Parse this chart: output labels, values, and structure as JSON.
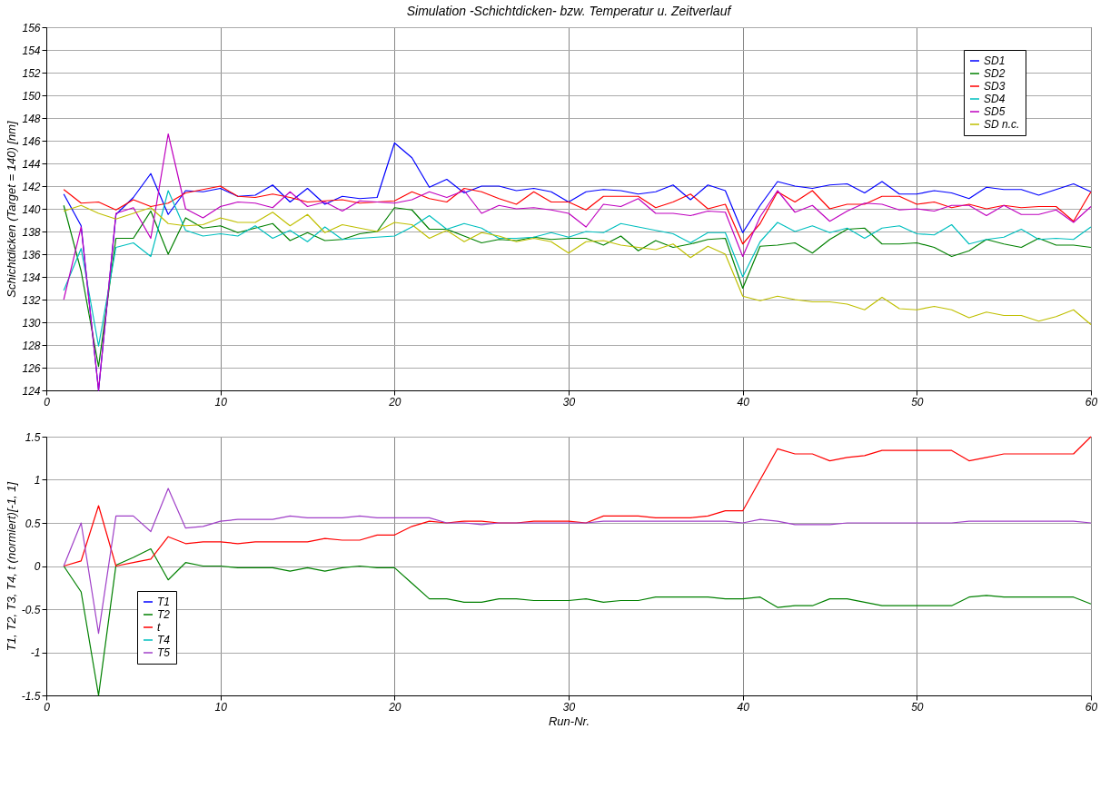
{
  "chart_data": [
    {
      "type": "line",
      "title": "Simulation -Schichtdicken- bzw. Temperatur u. Zeitverlauf",
      "ylabel": "Schichtdicken (Target = 140) [nm]",
      "x": [
        1,
        2,
        3,
        4,
        5,
        6,
        7,
        8,
        9,
        10,
        11,
        12,
        13,
        14,
        15,
        16,
        17,
        18,
        19,
        20,
        21,
        22,
        23,
        24,
        25,
        26,
        27,
        28,
        29,
        30,
        31,
        32,
        33,
        34,
        35,
        36,
        37,
        38,
        39,
        40,
        41,
        42,
        43,
        44,
        45,
        46,
        47,
        48,
        49,
        50,
        51,
        52,
        53,
        54,
        55,
        56,
        57,
        58,
        59,
        60
      ],
      "xlim": [
        0,
        60
      ],
      "xticks": [
        0,
        10,
        20,
        30,
        40,
        50,
        60
      ],
      "ylim": [
        124,
        156
      ],
      "yticks": [
        124,
        126,
        128,
        130,
        132,
        134,
        136,
        138,
        140,
        142,
        144,
        146,
        148,
        150,
        152,
        154,
        156
      ],
      "grid": true,
      "legend": "top right",
      "series": [
        {
          "name": "SD1",
          "color": "#0000ff",
          "values": [
            141.3,
            138.5,
            124,
            139.5,
            141,
            143.1,
            139.5,
            141.6,
            141.5,
            141.8,
            141.1,
            141.2,
            142.1,
            140.6,
            141.8,
            140.4,
            141.1,
            140.9,
            141,
            145.8,
            144.5,
            141.9,
            142.6,
            141.4,
            142,
            142,
            141.6,
            141.8,
            141.5,
            140.6,
            141.5,
            141.7,
            141.6,
            141.3,
            141.5,
            142.1,
            140.8,
            142.1,
            141.6,
            137.9,
            140.3,
            142.4,
            142,
            141.8,
            142.1,
            142.2,
            141.4,
            142.4,
            141.3,
            141.3,
            141.6,
            141.4,
            140.9,
            141.9,
            141.7,
            141.7,
            141.2,
            141.7,
            142.2,
            141.5
          ]
        },
        {
          "name": "SD2",
          "color": "#008000",
          "values": [
            140.3,
            134.5,
            126.1,
            137.4,
            137.4,
            139.8,
            136,
            139.2,
            138.3,
            138.5,
            137.9,
            138.3,
            138.7,
            137.2,
            137.9,
            137.2,
            137.3,
            137.8,
            138,
            140.1,
            139.9,
            138.2,
            138.2,
            137.6,
            137,
            137.3,
            137.2,
            137.5,
            137.3,
            137.4,
            137.4,
            136.8,
            137.6,
            136.3,
            137.2,
            136.6,
            136.9,
            137.3,
            137.4,
            133,
            136.7,
            136.8,
            137,
            136.1,
            137.3,
            138.2,
            138.3,
            136.9,
            136.9,
            137,
            136.6,
            135.8,
            136.3,
            137.3,
            136.9,
            136.6,
            137.4,
            136.8,
            136.8,
            136.6
          ]
        },
        {
          "name": "SD3",
          "color": "#ff0000",
          "values": [
            141.7,
            140.5,
            140.6,
            139.9,
            140.8,
            140.2,
            140.5,
            141.4,
            141.7,
            142,
            141.1,
            141,
            141.3,
            141,
            140.6,
            140.7,
            140.8,
            140.5,
            140.6,
            140.7,
            141.5,
            140.9,
            140.6,
            141.8,
            141.5,
            140.9,
            140.4,
            141.5,
            140.6,
            140.6,
            139.9,
            141.1,
            141.1,
            141.1,
            140.1,
            140.6,
            141.3,
            140,
            140.4,
            136.9,
            138.7,
            141.5,
            140.6,
            141.6,
            140,
            140.4,
            140.4,
            141.1,
            141.1,
            140.4,
            140.6,
            140.1,
            140.4,
            140,
            140.3,
            140.1,
            140.2,
            140.2,
            138.9,
            141.5
          ]
        },
        {
          "name": "SD4",
          "color": "#00bfbf",
          "values": [
            132.8,
            136.5,
            127.9,
            136.6,
            137,
            135.8,
            141.6,
            138.1,
            137.6,
            137.8,
            137.6,
            138.5,
            137.4,
            138.1,
            137.1,
            138.4,
            137.3,
            137.4,
            137.5,
            137.6,
            138.4,
            139.4,
            138.2,
            138.7,
            138.3,
            137.4,
            137.4,
            137.5,
            137.9,
            137.5,
            138,
            137.9,
            138.7,
            138.4,
            138.1,
            137.8,
            137,
            137.9,
            137.9,
            134,
            137.1,
            138.8,
            138,
            138.5,
            137.9,
            138.3,
            137.4,
            138.3,
            138.5,
            137.8,
            137.7,
            138.6,
            136.9,
            137.3,
            137.5,
            138.2,
            137.3,
            137.4,
            137.3,
            138.4
          ]
        },
        {
          "name": "SD5",
          "color": "#bf00bf",
          "values": [
            132,
            138.4,
            124,
            139.6,
            140.1,
            137.4,
            146.6,
            140,
            139.2,
            140.2,
            140.6,
            140.5,
            140.1,
            141.5,
            140.2,
            140.6,
            139.8,
            140.7,
            140.6,
            140.5,
            140.8,
            141.5,
            141,
            141.6,
            139.6,
            140.3,
            140,
            140.1,
            139.9,
            139.6,
            138.4,
            140.4,
            140.2,
            140.9,
            139.6,
            139.6,
            139.4,
            139.8,
            139.7,
            135.8,
            139.3,
            141.6,
            139.7,
            140.3,
            138.9,
            139.8,
            140.5,
            140.4,
            139.9,
            140,
            139.8,
            140.3,
            140.3,
            139.4,
            140.3,
            139.5,
            139.5,
            139.9,
            138.8,
            140.2
          ]
        },
        {
          "name": "SD n.c.",
          "color": "#bfbf00",
          "values": [
            139.8,
            140.3,
            139.6,
            139.1,
            139.6,
            140.1,
            138.7,
            138.5,
            138.6,
            139.2,
            138.8,
            138.8,
            139.7,
            138.5,
            139.5,
            137.9,
            138.6,
            138.3,
            138,
            138.8,
            138.6,
            137.4,
            138.1,
            137.1,
            137.9,
            137.6,
            137.1,
            137.4,
            137.1,
            136.1,
            137.1,
            137.2,
            136.8,
            136.6,
            136.4,
            136.9,
            135.7,
            136.7,
            136,
            132.3,
            131.9,
            132.3,
            132,
            131.8,
            131.8,
            131.6,
            131.1,
            132.2,
            131.2,
            131.1,
            131.4,
            131.1,
            130.4,
            130.9,
            130.6,
            130.6,
            130.1,
            130.5,
            131.1,
            129.8
          ]
        }
      ]
    },
    {
      "type": "line",
      "xlabel": "Run-Nr.",
      "ylabel": "T1, T2, T3, T4, t (normiert)[-1, 1]",
      "x": [
        1,
        2,
        3,
        4,
        5,
        6,
        7,
        8,
        9,
        10,
        11,
        12,
        13,
        14,
        15,
        16,
        17,
        18,
        19,
        20,
        21,
        22,
        23,
        24,
        25,
        26,
        27,
        28,
        29,
        30,
        31,
        32,
        33,
        34,
        35,
        36,
        37,
        38,
        39,
        40,
        41,
        42,
        43,
        44,
        45,
        46,
        47,
        48,
        49,
        50,
        51,
        52,
        53,
        54,
        55,
        56,
        57,
        58,
        59,
        60
      ],
      "xlim": [
        0,
        60
      ],
      "xticks": [
        0,
        10,
        20,
        30,
        40,
        50,
        60
      ],
      "ylim": [
        -1.5,
        1.5
      ],
      "yticks": [
        -1.5,
        -1,
        -0.5,
        0,
        0.5,
        1,
        1.5
      ],
      "grid": true,
      "legend": "bottom left",
      "series": [
        {
          "name": "T1",
          "color": "#0000ff",
          "values": [
            null,
            null,
            null,
            null,
            null,
            null,
            null,
            null,
            null,
            null,
            null,
            null,
            null,
            null,
            null,
            null,
            null,
            null,
            null,
            null,
            null,
            null,
            null,
            null,
            null,
            null,
            null,
            null,
            null,
            null,
            null,
            null,
            null,
            null,
            null,
            null,
            null,
            null,
            null,
            null,
            null,
            null,
            null,
            null,
            null,
            null,
            null,
            null,
            null,
            null,
            null,
            null,
            null,
            null,
            null,
            null,
            null,
            null,
            null,
            null
          ]
        },
        {
          "name": "T2",
          "color": "#008000",
          "values": [
            0,
            -0.3,
            -1.5,
            0.01,
            0.1,
            0.2,
            -0.16,
            0.04,
            0,
            0,
            -0.02,
            -0.02,
            -0.02,
            -0.06,
            -0.02,
            -0.06,
            -0.02,
            0,
            -0.02,
            -0.02,
            -0.2,
            -0.38,
            -0.38,
            -0.42,
            -0.42,
            -0.38,
            -0.38,
            -0.4,
            -0.4,
            -0.4,
            -0.38,
            -0.42,
            -0.4,
            -0.4,
            -0.36,
            -0.36,
            -0.36,
            -0.36,
            -0.38,
            -0.38,
            -0.36,
            -0.48,
            -0.46,
            -0.46,
            -0.38,
            -0.38,
            -0.42,
            -0.46,
            -0.46,
            -0.46,
            -0.46,
            -0.46,
            -0.36,
            -0.34,
            -0.36,
            -0.36,
            -0.36,
            -0.36,
            -0.36,
            -0.44
          ]
        },
        {
          "name": "t",
          "color": "#ff0000",
          "values": [
            0,
            0.06,
            0.7,
            0,
            0.04,
            0.08,
            0.34,
            0.26,
            0.28,
            0.28,
            0.26,
            0.28,
            0.28,
            0.28,
            0.28,
            0.32,
            0.3,
            0.3,
            0.36,
            0.36,
            0.46,
            0.52,
            0.5,
            0.52,
            0.52,
            0.5,
            0.5,
            0.52,
            0.52,
            0.52,
            0.5,
            0.58,
            0.58,
            0.58,
            0.56,
            0.56,
            0.56,
            0.58,
            0.64,
            0.64,
            1,
            1.36,
            1.3,
            1.3,
            1.22,
            1.26,
            1.28,
            1.34,
            1.34,
            1.34,
            1.34,
            1.34,
            1.22,
            1.26,
            1.3,
            1.3,
            1.3,
            1.3,
            1.3,
            1.5
          ]
        },
        {
          "name": "T4",
          "color": "#00bfbf",
          "values": [
            null,
            null,
            null,
            null,
            null,
            null,
            null,
            null,
            null,
            null,
            null,
            null,
            null,
            null,
            null,
            null,
            null,
            null,
            null,
            null,
            null,
            null,
            null,
            null,
            null,
            null,
            null,
            null,
            null,
            null,
            null,
            null,
            null,
            null,
            null,
            null,
            null,
            null,
            null,
            null,
            null,
            null,
            null,
            null,
            null,
            null,
            null,
            null,
            null,
            null,
            null,
            null,
            null,
            null,
            null,
            null,
            null,
            null,
            null,
            null
          ]
        },
        {
          "name": "T5",
          "color": "#a040c8",
          "values": [
            0,
            0.5,
            -0.78,
            0.58,
            0.58,
            0.4,
            0.9,
            0.44,
            0.46,
            0.52,
            0.54,
            0.54,
            0.54,
            0.58,
            0.56,
            0.56,
            0.56,
            0.58,
            0.56,
            0.56,
            0.56,
            0.56,
            0.5,
            0.5,
            0.48,
            0.5,
            0.5,
            0.5,
            0.5,
            0.5,
            0.5,
            0.52,
            0.52,
            0.52,
            0.52,
            0.52,
            0.52,
            0.52,
            0.52,
            0.5,
            0.54,
            0.52,
            0.48,
            0.48,
            0.48,
            0.5,
            0.5,
            0.5,
            0.5,
            0.5,
            0.5,
            0.5,
            0.52,
            0.52,
            0.52,
            0.52,
            0.52,
            0.52,
            0.52,
            0.5
          ]
        }
      ]
    }
  ]
}
